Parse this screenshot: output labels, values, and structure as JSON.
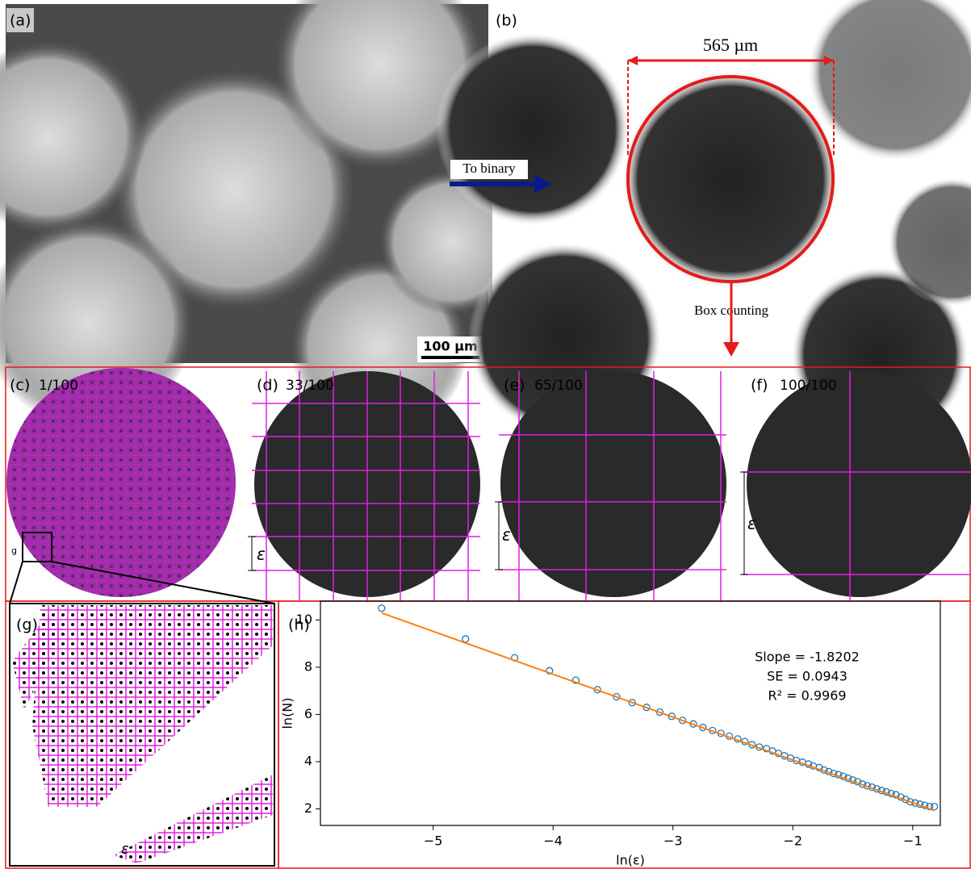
{
  "panels": {
    "a": {
      "label": "(a)",
      "scale_bar": "100 µm"
    },
    "b": {
      "label": "(b)",
      "dimension": "565 µm",
      "arrow_in": "To binary",
      "arrow_out": "Box counting"
    },
    "c": {
      "label": "(c)",
      "fraction": "1/100",
      "inset_marker": "g"
    },
    "d": {
      "label": "(d)",
      "fraction": "33/100",
      "box_size": "ε"
    },
    "e": {
      "label": "(e)",
      "fraction": "65/100",
      "box_size": "ε"
    },
    "f": {
      "label": "(f)",
      "fraction": "100/100",
      "box_size": "ε"
    },
    "g": {
      "label": "(g)",
      "box_size": "ε"
    }
  },
  "chart_data": {
    "type": "scatter",
    "label": "(h)",
    "x_label": "ln(ε)",
    "y_label": "ln(N)",
    "annotations": [
      "Slope = -1.8202",
      "SE = 0.0943",
      "R² = 0.9969"
    ],
    "x": [
      -5.43,
      -4.73,
      -4.32,
      -4.03,
      -3.81,
      -3.63,
      -3.47,
      -3.34,
      -3.22,
      -3.11,
      -3.01,
      -2.92,
      -2.83,
      -2.75,
      -2.67,
      -2.6,
      -2.53,
      -2.46,
      -2.4,
      -2.34,
      -2.28,
      -2.22,
      -2.17,
      -2.12,
      -2.07,
      -2.02,
      -1.97,
      -1.92,
      -1.87,
      -1.83,
      -1.78,
      -1.74,
      -1.7,
      -1.66,
      -1.62,
      -1.58,
      -1.54,
      -1.5,
      -1.46,
      -1.42,
      -1.38,
      -1.34,
      -1.3,
      -1.26,
      -1.22,
      -1.18,
      -1.14,
      -1.1,
      -1.06,
      -1.02,
      -0.98,
      -0.94,
      -0.9,
      -0.86,
      -0.82
    ],
    "series": [
      {
        "color": "#1f77b4",
        "values": [
          10.5,
          9.2,
          8.4,
          7.85,
          7.45,
          7.05,
          6.75,
          6.5,
          6.3,
          6.1,
          5.92,
          5.75,
          5.6,
          5.45,
          5.32,
          5.2,
          5.08,
          4.96,
          4.85,
          4.72,
          4.62,
          4.55,
          4.45,
          4.35,
          4.25,
          4.15,
          4.05,
          3.98,
          3.9,
          3.82,
          3.75,
          3.65,
          3.58,
          3.5,
          3.45,
          3.38,
          3.3,
          3.22,
          3.15,
          3.05,
          2.98,
          2.92,
          2.85,
          2.78,
          2.72,
          2.65,
          2.6,
          2.5,
          2.4,
          2.3,
          2.25,
          2.2,
          2.15,
          2.1,
          2.1
        ]
      }
    ],
    "fit": {
      "x": [
        -5.43,
        -0.82
      ],
      "values": [
        10.3,
        1.93
      ],
      "color": "#ff7f0e"
    },
    "xlim": [
      -5.94,
      -0.77
    ],
    "ylim": [
      1.3,
      10.8
    ],
    "xticks": [
      {
        "value": -5,
        "label": "−5"
      },
      {
        "value": -4,
        "label": "−4"
      },
      {
        "value": -3,
        "label": "−3"
      },
      {
        "value": -2,
        "label": "−2"
      },
      {
        "value": -1,
        "label": "−1"
      }
    ],
    "yticks": [
      2,
      4,
      6,
      8,
      10
    ]
  }
}
